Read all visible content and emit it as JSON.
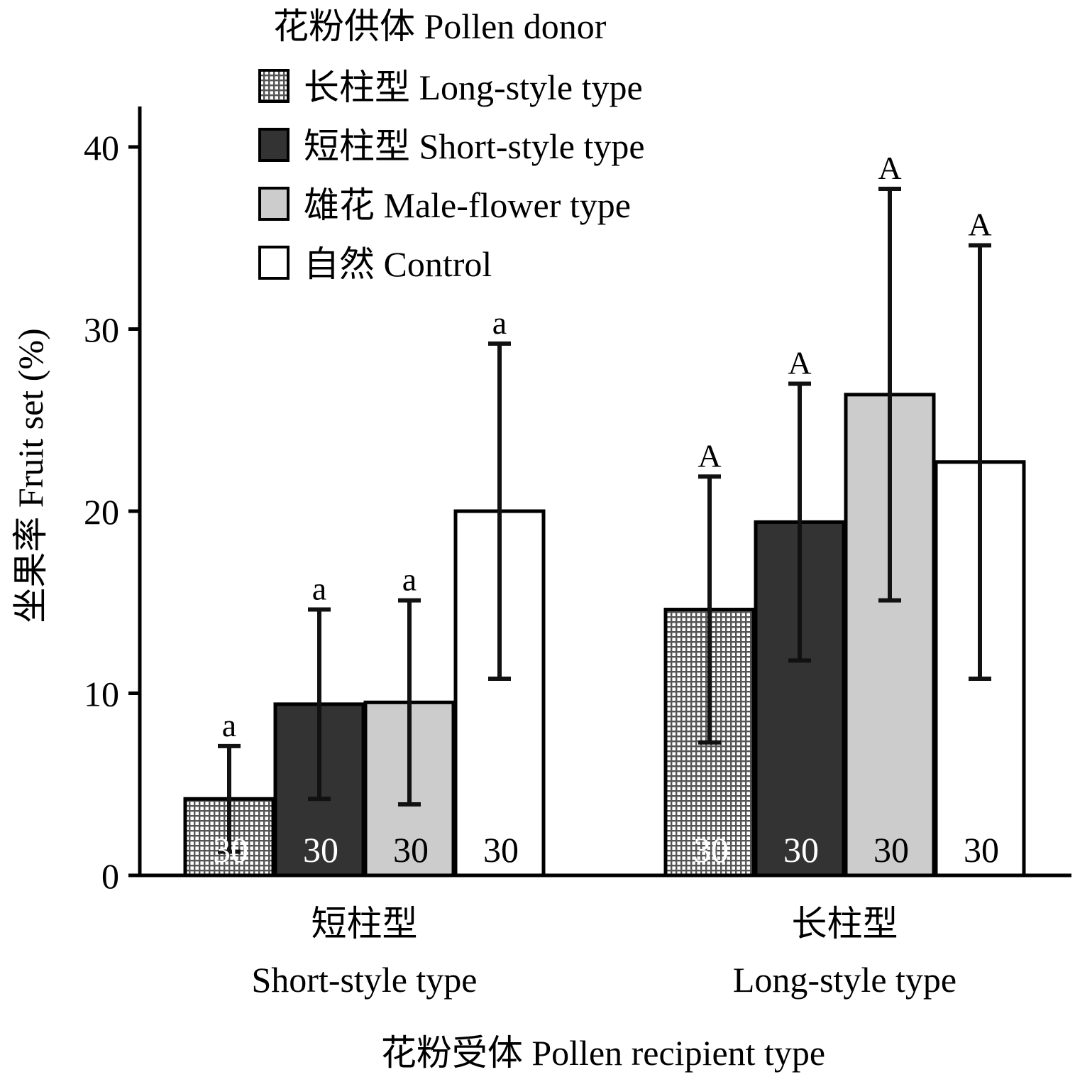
{
  "chart_data": {
    "type": "bar",
    "xlabel": "花粉受体 Pollen recipient type",
    "ylabel": "坐果率 Fruit set (%)",
    "ylim": [
      0,
      40
    ],
    "yticks": [
      0,
      10,
      20,
      30,
      40
    ],
    "grid": false,
    "legend_title": "花粉供体 Pollen donor",
    "legend_position": "top-left",
    "categories": [
      {
        "zh": "短柱型",
        "en": "Short-style type"
      },
      {
        "zh": "长柱型",
        "en": "Long-style type"
      }
    ],
    "series": [
      {
        "name": "长柱型 Long-style type",
        "pattern": "grid",
        "fill": "#8a8a8a",
        "values": [
          4.2,
          14.6
        ],
        "error": [
          2.9,
          7.3
        ],
        "sig": [
          "a",
          "A"
        ],
        "n": [
          "30",
          "30"
        ]
      },
      {
        "name": "短柱型 Short-style type",
        "pattern": "solid",
        "fill": "#333333",
        "values": [
          9.4,
          19.4
        ],
        "error": [
          5.2,
          7.6
        ],
        "sig": [
          "a",
          "A"
        ],
        "n": [
          "30",
          "30"
        ]
      },
      {
        "name": "雄花 Male-flower type",
        "pattern": "solid",
        "fill": "#cccccc",
        "values": [
          9.5,
          26.4
        ],
        "error": [
          5.6,
          11.3
        ],
        "sig": [
          "a",
          "A"
        ],
        "n": [
          "30",
          "30"
        ]
      },
      {
        "name": "自然 Control",
        "pattern": "solid",
        "fill": "#ffffff",
        "values": [
          20.0,
          22.7
        ],
        "error": [
          9.2,
          11.9
        ],
        "sig": [
          "a",
          "A"
        ],
        "n": [
          "30",
          "30"
        ]
      }
    ]
  }
}
